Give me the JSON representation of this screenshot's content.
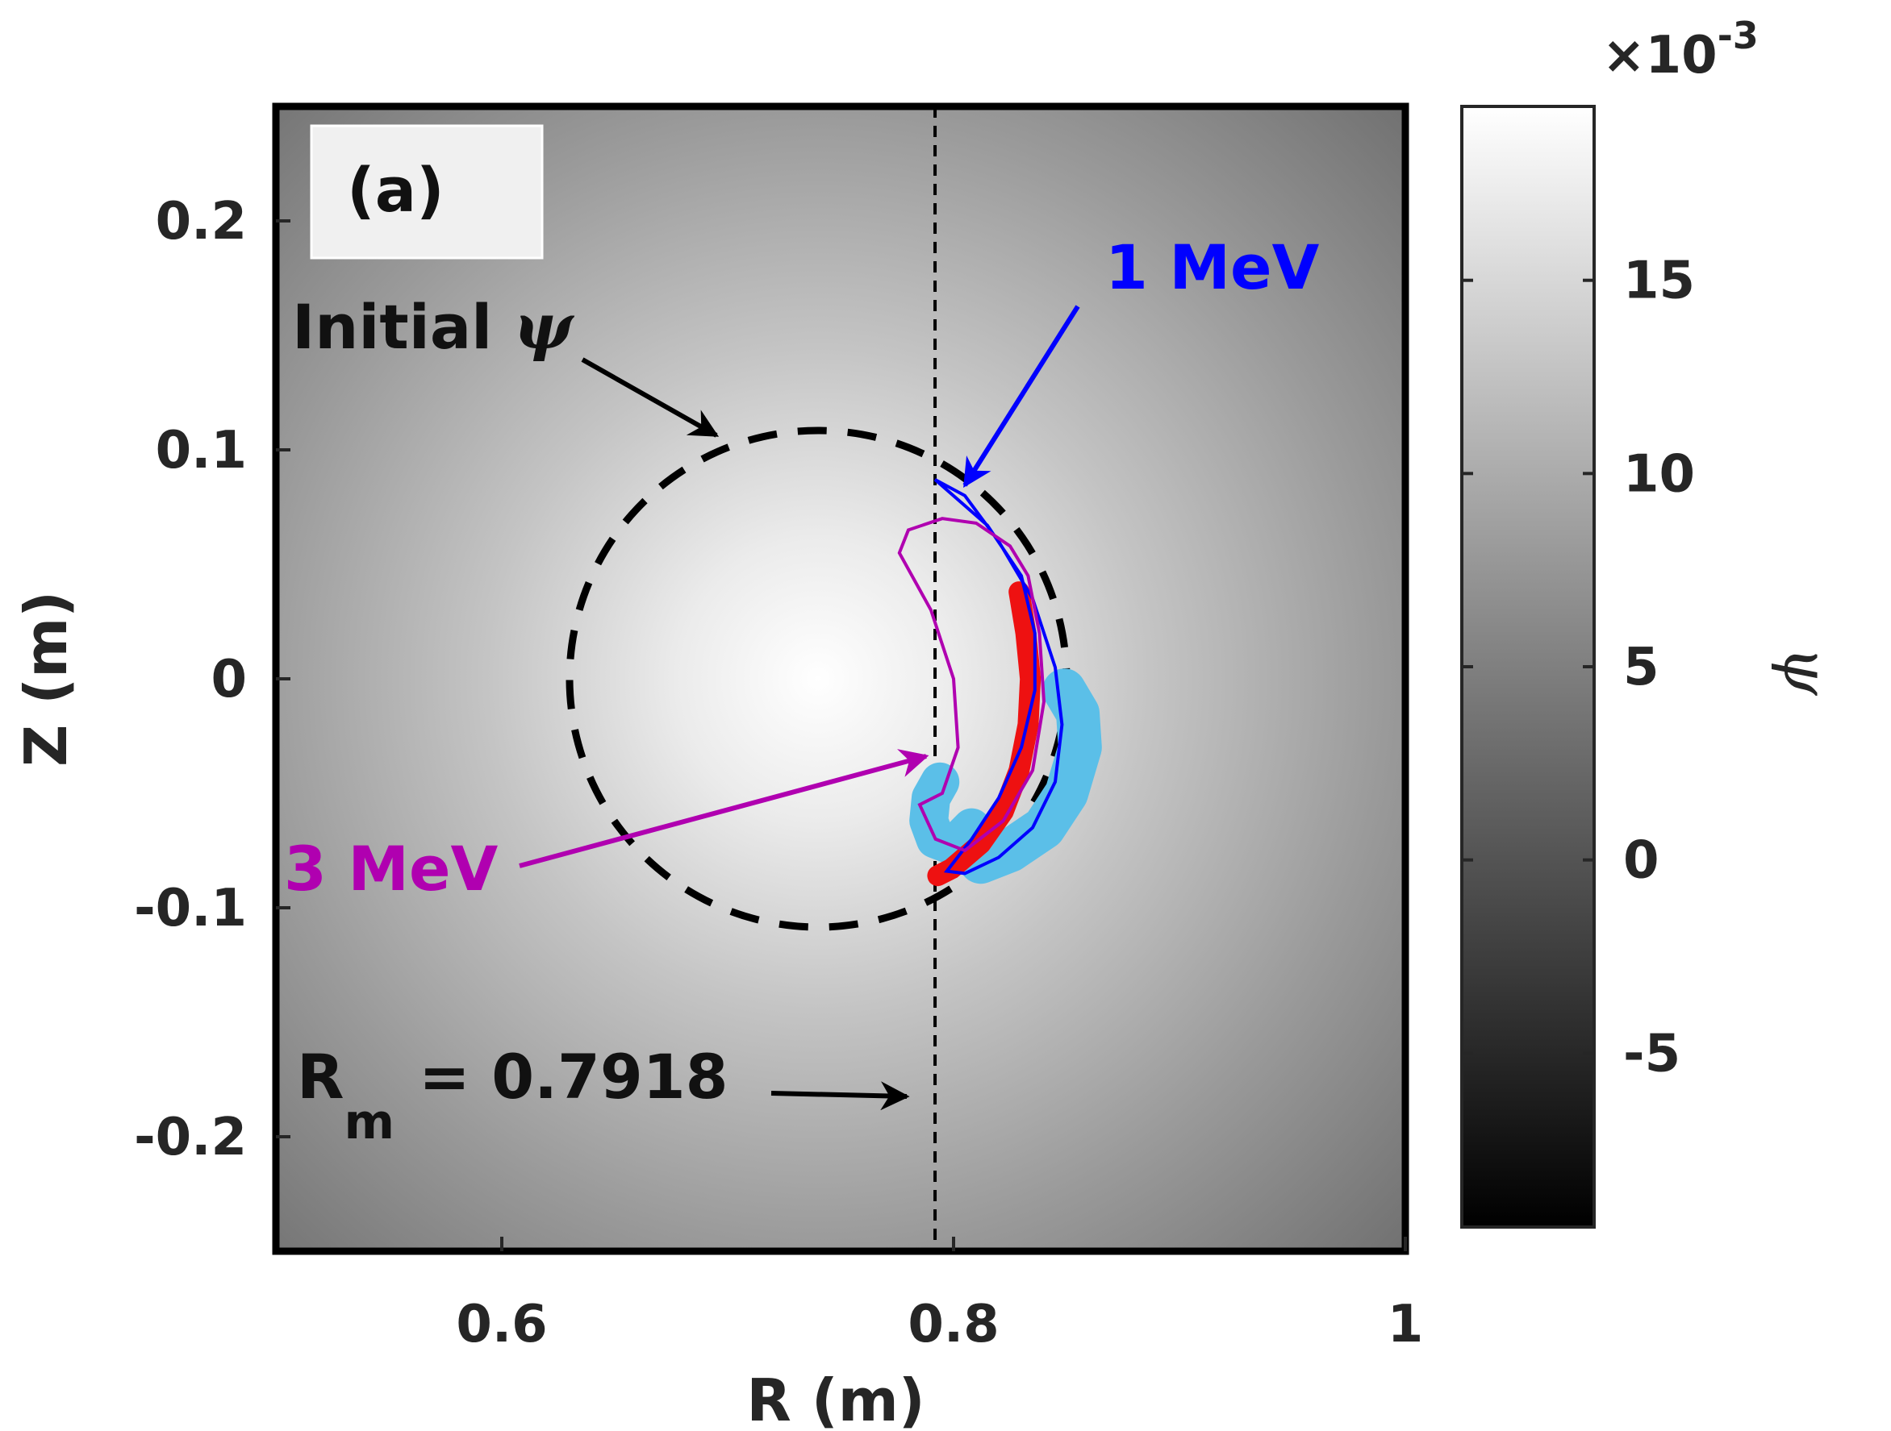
{
  "chart_data": {
    "type": "heatmap",
    "panel_label": "(a)",
    "xlabel": "R (m)",
    "ylabel": "Z (m)",
    "xlim": [
      0.5,
      1.0
    ],
    "ylim": [
      -0.25,
      0.25
    ],
    "xticks": [
      0.6,
      0.8,
      1.0
    ],
    "xtick_labels": [
      "0.6",
      "0.8",
      "1"
    ],
    "yticks": [
      0.2,
      0.1,
      0,
      -0.1,
      -0.2
    ],
    "ytick_labels": [
      "0.2",
      "0.1",
      "0",
      "-0.1",
      "-0.2"
    ],
    "field": {
      "center_R": 0.74,
      "center_Z": 0.0,
      "max": 19.5,
      "min": -9.5,
      "falloff_radius": 0.42
    },
    "colorbar": {
      "label": "ψ",
      "multiplier": "×10",
      "exponent": "-3",
      "range": [
        -9.5,
        19.5
      ],
      "ticks": [
        15,
        10,
        5,
        0,
        -5
      ],
      "tick_labels": [
        "15",
        "10",
        "5",
        "0",
        "-5"
      ]
    },
    "initial_psi_contour": {
      "center_R": 0.74,
      "center_Z": 0.0,
      "radius": 0.11
    },
    "vertical_line": {
      "R": 0.7918
    },
    "annotations": {
      "initial_prefix": "Initial ",
      "initial_symbol": "ψ",
      "rm_main": "R",
      "rm_sub": "m",
      "rm_value": "= 0.7918",
      "mev1": "1 MeV",
      "mev3": "3 MeV"
    },
    "orbits": {
      "mev1": [
        [
          0.7918,
          0.087
        ],
        [
          0.805,
          0.08
        ],
        [
          0.82,
          0.06
        ],
        [
          0.835,
          0.035
        ],
        [
          0.845,
          0.005
        ],
        [
          0.848,
          -0.02
        ],
        [
          0.845,
          -0.045
        ],
        [
          0.835,
          -0.065
        ],
        [
          0.82,
          -0.078
        ],
        [
          0.805,
          -0.085
        ],
        [
          0.797,
          -0.084
        ],
        [
          0.808,
          -0.07
        ],
        [
          0.82,
          -0.052
        ],
        [
          0.83,
          -0.03
        ],
        [
          0.836,
          -0.005
        ],
        [
          0.836,
          0.02
        ],
        [
          0.83,
          0.045
        ],
        [
          0.815,
          0.067
        ],
        [
          0.7918,
          0.087
        ]
      ],
      "mev3": [
        [
          0.78,
          0.065
        ],
        [
          0.795,
          0.07
        ],
        [
          0.81,
          0.068
        ],
        [
          0.825,
          0.058
        ],
        [
          0.833,
          0.045
        ],
        [
          0.838,
          0.02
        ],
        [
          0.84,
          -0.01
        ],
        [
          0.835,
          -0.04
        ],
        [
          0.822,
          -0.062
        ],
        [
          0.805,
          -0.075
        ],
        [
          0.792,
          -0.07
        ],
        [
          0.785,
          -0.055
        ],
        [
          0.795,
          -0.05
        ],
        [
          0.802,
          -0.03
        ],
        [
          0.8,
          0.0
        ],
        [
          0.79,
          0.03
        ],
        [
          0.776,
          0.055
        ],
        [
          0.78,
          0.065
        ]
      ],
      "red_band": [
        [
          0.829,
          0.038
        ],
        [
          0.832,
          0.02
        ],
        [
          0.834,
          0.0
        ],
        [
          0.833,
          -0.02
        ],
        [
          0.829,
          -0.04
        ],
        [
          0.822,
          -0.058
        ],
        [
          0.812,
          -0.072
        ],
        [
          0.799,
          -0.083
        ],
        [
          0.793,
          -0.086
        ]
      ],
      "cyan_large": [
        [
          0.849,
          -0.005
        ],
        [
          0.855,
          -0.015
        ],
        [
          0.856,
          -0.03
        ],
        [
          0.85,
          -0.05
        ],
        [
          0.84,
          -0.065
        ],
        [
          0.825,
          -0.075
        ],
        [
          0.812,
          -0.08
        ]
      ],
      "cyan_small": [
        [
          0.794,
          -0.045
        ],
        [
          0.79,
          -0.052
        ],
        [
          0.789,
          -0.062
        ],
        [
          0.792,
          -0.07
        ],
        [
          0.8,
          -0.073
        ],
        [
          0.808,
          -0.065
        ]
      ]
    }
  }
}
